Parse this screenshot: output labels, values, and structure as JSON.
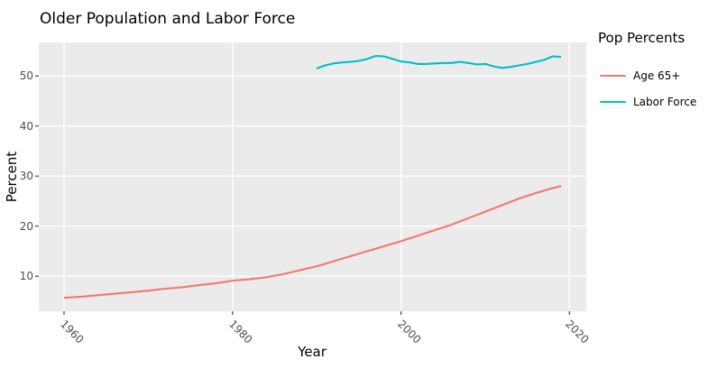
{
  "title": "Older Population and Labor Force",
  "axes": {
    "x_label": "Year",
    "y_label": "Percent",
    "x_tick_labels": [
      "1960",
      "1980",
      "2000",
      "2020"
    ],
    "y_tick_labels": [
      "10",
      "20",
      "30",
      "40",
      "50"
    ]
  },
  "legend": {
    "title": "Pop Percents",
    "entries": [
      {
        "label": "Age 65+",
        "color": "#F8766D"
      },
      {
        "label": "Labor Force",
        "color": "#00BFC4"
      }
    ]
  },
  "colors": {
    "panel_bg": "#EBEBEB",
    "gridline": "#FFFFFF",
    "tick_mark": "#333333",
    "tick_label": "#4D4D4D",
    "text": "#000000"
  },
  "chart_data": {
    "type": "line",
    "title": "Older Population and Labor Force",
    "xlabel": "Year",
    "ylabel": "Percent",
    "xlim": [
      1957,
      2022
    ],
    "ylim": [
      3,
      56.7
    ],
    "x_ticks": [
      1960,
      1980,
      2000,
      2020
    ],
    "y_ticks": [
      10,
      20,
      30,
      40,
      50
    ],
    "grid": true,
    "legend_title": "Pop Percents",
    "legend_position": "right",
    "series": [
      {
        "name": "Age 65+",
        "color": "#F8766D",
        "x": [
          1960,
          1962,
          1964,
          1966,
          1968,
          1970,
          1972,
          1974,
          1976,
          1978,
          1980,
          1982,
          1984,
          1986,
          1988,
          1990,
          1992,
          1994,
          1996,
          1998,
          2000,
          2002,
          2004,
          2006,
          2008,
          2010,
          2012,
          2014,
          2016,
          2018,
          2019
        ],
        "values": [
          5.7,
          5.9,
          6.2,
          6.5,
          6.8,
          7.1,
          7.5,
          7.8,
          8.2,
          8.6,
          9.1,
          9.4,
          9.8,
          10.4,
          11.2,
          12.0,
          13.0,
          14.0,
          15.0,
          16.0,
          17.0,
          18.1,
          19.2,
          20.3,
          21.6,
          22.9,
          24.2,
          25.5,
          26.6,
          27.6,
          28.0
        ]
      },
      {
        "name": "Labor Force",
        "color": "#00BFC4",
        "x": [
          1990,
          1991,
          1992,
          1993,
          1994,
          1995,
          1996,
          1997,
          1998,
          1999,
          2000,
          2001,
          2002,
          2003,
          2004,
          2005,
          2006,
          2007,
          2008,
          2009,
          2010,
          2011,
          2012,
          2013,
          2014,
          2015,
          2016,
          2017,
          2018,
          2019
        ],
        "values": [
          51.5,
          52.1,
          52.5,
          52.7,
          52.8,
          53.0,
          53.4,
          54.0,
          53.9,
          53.4,
          52.9,
          52.7,
          52.4,
          52.4,
          52.5,
          52.6,
          52.6,
          52.8,
          52.6,
          52.3,
          52.4,
          51.9,
          51.6,
          51.8,
          52.1,
          52.4,
          52.8,
          53.2,
          53.9,
          53.8
        ]
      }
    ]
  }
}
